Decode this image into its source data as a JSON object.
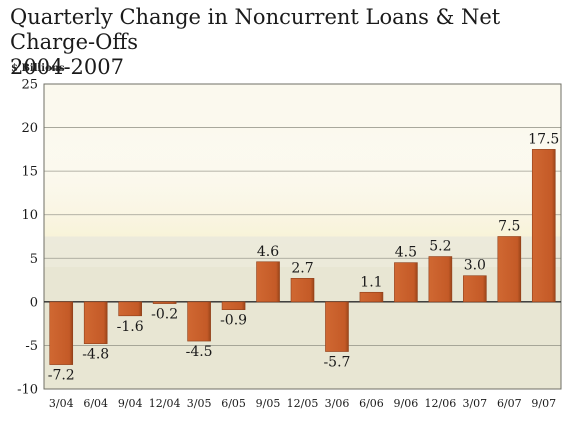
{
  "title_line1": "Quarterly Change in Noncurrent Loans & Net Charge-Offs",
  "title_line2": "2004-2007",
  "unit_label": "$ Billions",
  "colors": {
    "bar": "#c8602d",
    "bar_shadow": "#8f3f1a",
    "plot_bg": "#e8e6d3",
    "grid": "#9c9c90"
  },
  "chart_data": {
    "type": "bar",
    "title": "Quarterly Change in Noncurrent Loans & Net Charge-Offs 2004-2007",
    "ylabel": "$ Billions",
    "xlabel": "",
    "ylim": [
      -10,
      25
    ],
    "yticks": [
      -10,
      -5,
      0,
      5,
      10,
      15,
      20,
      25
    ],
    "ytick_labels": [
      "-10",
      "-5",
      "0",
      "5",
      "10",
      "15",
      "20",
      "25"
    ],
    "grid": true,
    "categories": [
      "3/04",
      "6/04",
      "9/04",
      "12/04",
      "3/05",
      "6/05",
      "9/05",
      "12/05",
      "3/06",
      "6/06",
      "9/06",
      "12/06",
      "3/07",
      "6/07",
      "9/07"
    ],
    "values": [
      -7.2,
      -4.8,
      -1.6,
      -0.2,
      -4.5,
      -0.9,
      4.6,
      2.7,
      -5.7,
      1.1,
      4.5,
      5.2,
      3.0,
      7.5,
      17.5
    ],
    "data_labels": [
      "-7.2",
      "-4.8",
      "-1.6",
      "-0.2",
      "-4.5",
      "-0.9",
      "4.6",
      "2.7",
      "-5.7",
      "1.1",
      "4.5",
      "5.2",
      "3.0",
      "7.5",
      "17.5"
    ]
  }
}
